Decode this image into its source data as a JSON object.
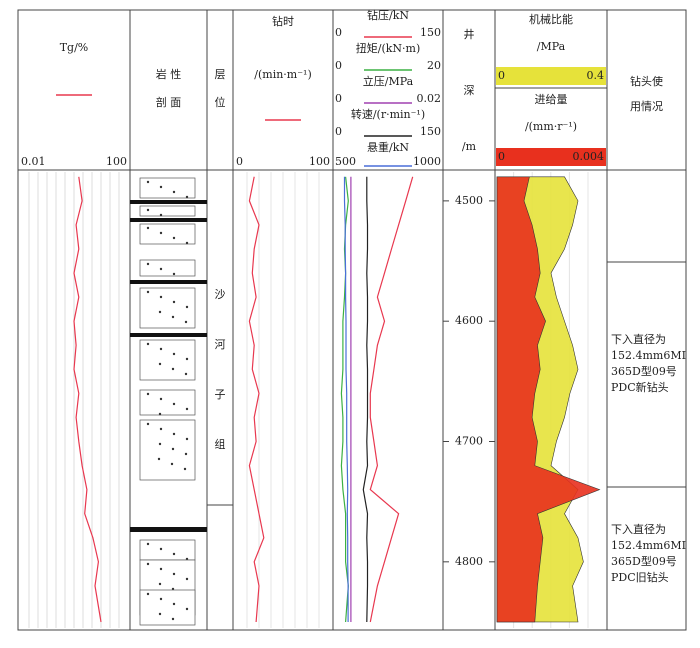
{
  "chart_data": {
    "type": "well-log",
    "depths": [
      4480,
      4500,
      4520,
      4540,
      4560,
      4580,
      4600,
      4620,
      4640,
      4660,
      4680,
      4700,
      4720,
      4740,
      4760,
      4780,
      4800,
      4820,
      4850
    ],
    "ylim": [
      4476,
      4855
    ],
    "yticks": [
      4500,
      4600,
      4700,
      4800
    ],
    "tracks": [
      {
        "curves": [
          {
            "name": "Tg/%",
            "color": "#e8384f",
            "xlim": [
              0.01,
              100
            ],
            "log": true,
            "values": [
              1.5,
              2,
              1.2,
              1.5,
              1,
              1.5,
              1,
              1.2,
              1,
              1.5,
              1.2,
              1.5,
              2,
              3,
              2.5,
              5,
              8,
              6,
              10
            ]
          }
        ]
      },
      {
        "header": [
          "岩 性",
          "剖 面"
        ]
      },
      {
        "header": [
          "层",
          "位"
        ],
        "body": [
          "沙",
          "河",
          "子",
          "组"
        ]
      },
      {
        "curves": [
          {
            "name": "钻时",
            "unit": "/(min·m⁻¹)",
            "color": "#e8384f",
            "xlim": [
              0,
              100
            ],
            "values": [
              20,
              15,
              25,
              20,
              18,
              22,
              15,
              20,
              18,
              25,
              20,
              22,
              15,
              20,
              25,
              30,
              20,
              25,
              22
            ]
          }
        ]
      },
      {
        "curves": [
          {
            "name": "钻压/kN",
            "color": "#e8384f",
            "xlim": [
              0,
              150
            ],
            "values": [
              110,
              100,
              90,
              80,
              70,
              60,
              70,
              60,
              55,
              50,
              50,
              55,
              60,
              50,
              90,
              80,
              70,
              60,
              50
            ]
          },
          {
            "name": "扭矩/(kN·m)",
            "color": "#3cb043",
            "xlim": [
              0,
              20
            ],
            "values": [
              2,
              2.5,
              2,
              1.8,
              2,
              1.8,
              1.5,
              1.5,
              1.5,
              1.2,
              1.5,
              1.5,
              1.2,
              1.5,
              2,
              2,
              2,
              2.5,
              2
            ]
          },
          {
            "name": "立压/MPa",
            "color": "#a040b0",
            "xlim": [
              0,
              0.02
            ],
            "values": [
              0.003,
              0.003,
              0.003,
              0.003,
              0.003,
              0.003,
              0.003,
              0.003,
              0.003,
              0.003,
              0.003,
              0.003,
              0.003,
              0.003,
              0.003,
              0.003,
              0.003,
              0.003,
              0.003
            ]
          },
          {
            "name": "转速/(r·min⁻¹)",
            "color": "#222222",
            "xlim": [
              0,
              150
            ],
            "values": [
              45,
              45,
              46,
              46,
              45,
              46,
              46,
              45,
              46,
              46,
              46,
              45,
              46,
              40,
              46,
              45,
              46,
              46,
              45
            ]
          },
          {
            "name": "悬重/kN",
            "color": "#4a6fd8",
            "xlim": [
              500,
              1000
            ],
            "values": [
              545,
              545,
              548,
              548,
              550,
              550,
              552,
              552,
              552,
              555,
              555,
              555,
              558,
              560,
              558,
              560,
              560,
              562,
              562
            ]
          }
        ]
      },
      {
        "header": [
          "井",
          "深",
          "/m"
        ]
      },
      {
        "curves": [
          {
            "name": "机械比能",
            "unit": "/MPa",
            "color": "#e6e23a",
            "xlim": [
              0,
              0.4
            ],
            "values": [
              0.25,
              0.3,
              0.28,
              0.25,
              0.2,
              0.22,
              0.25,
              0.28,
              0.3,
              0.27,
              0.25,
              0.22,
              0.2,
              0.3,
              0.25,
              0.3,
              0.32,
              0.28,
              0.3
            ]
          },
          {
            "name": "进给量",
            "unit": "/(mm·r⁻¹)",
            "color": "#e8301e",
            "xlim": [
              0,
              0.004
            ],
            "values": [
              0.0012,
              0.001,
              0.0013,
              0.0015,
              0.0016,
              0.0014,
              0.0018,
              0.0015,
              0.0016,
              0.0014,
              0.0013,
              0.0015,
              0.0014,
              0.0038,
              0.0015,
              0.0017,
              0.0016,
              0.0015,
              0.0014
            ]
          }
        ]
      },
      {
        "header": [
          "钻头使",
          "用情况"
        ],
        "notes": [
          [
            "下入直径为",
            "152.4mm6MI",
            "365D型09号",
            "PDC新钻头"
          ],
          [
            "下入直径为",
            "152.4mm6MI",
            "365D型09号",
            "PDC旧钻头"
          ]
        ]
      }
    ]
  }
}
